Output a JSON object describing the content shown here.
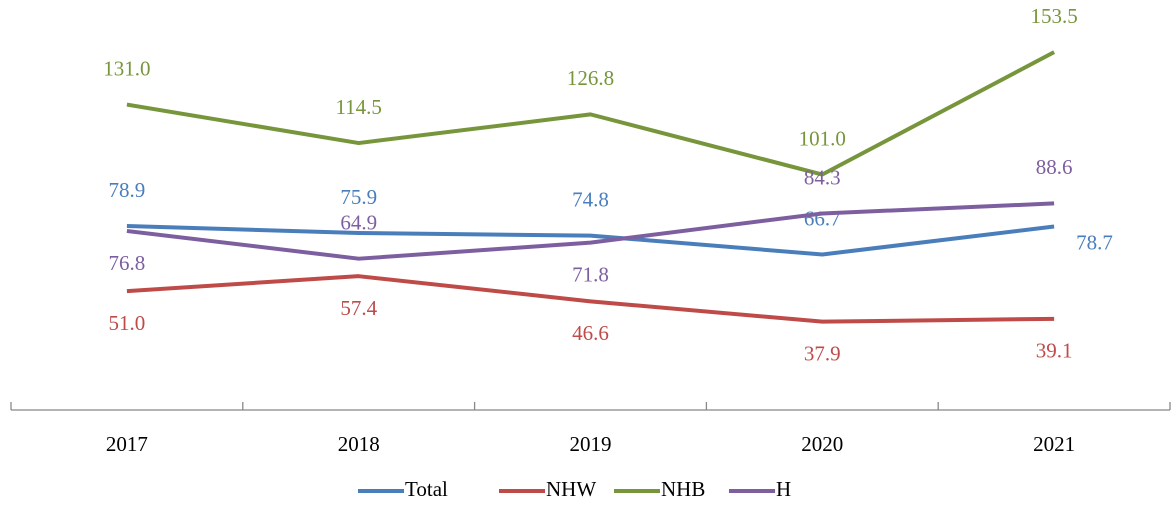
{
  "chart_data": {
    "type": "line",
    "categories": [
      "2017",
      "2018",
      "2019",
      "2020",
      "2021"
    ],
    "ylim": [
      0,
      175
    ],
    "series": [
      {
        "name": "Total",
        "color": "#4a7ebb",
        "values": [
          78.9,
          75.9,
          74.8,
          66.7,
          78.7
        ],
        "value_labels": [
          "78.9",
          "75.9",
          "74.8",
          "66.7",
          "78.7"
        ]
      },
      {
        "name": "NHW",
        "color": "#be4b48",
        "values": [
          51.0,
          57.4,
          46.6,
          37.9,
          39.1
        ],
        "value_labels": [
          "51.0",
          "57.4",
          "46.6",
          "37.9",
          "39.1"
        ]
      },
      {
        "name": "NHB",
        "color": "#77953b",
        "values": [
          131.0,
          114.5,
          126.8,
          101.0,
          153.5
        ],
        "value_labels": [
          "131.0",
          "114.5",
          "126.8",
          "101.0",
          "153.5"
        ]
      },
      {
        "name": "H",
        "color": "#7d5fa0",
        "values": [
          76.8,
          64.9,
          71.8,
          84.3,
          88.6
        ],
        "value_labels": [
          "76.8",
          "64.9",
          "71.8",
          "84.3",
          "88.6"
        ]
      }
    ]
  }
}
